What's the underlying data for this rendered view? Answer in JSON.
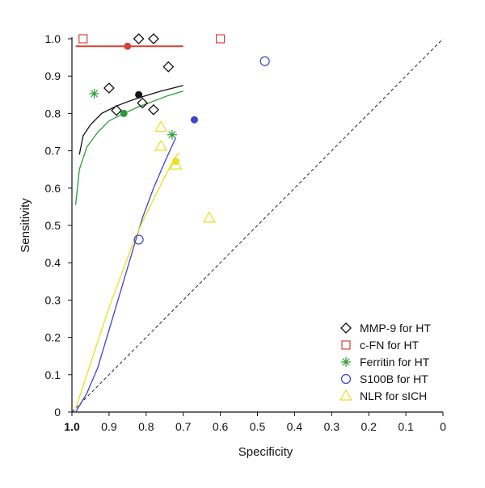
{
  "chart_data": {
    "type": "scatter",
    "xlabel": "Specificity",
    "ylabel": "Sensitivity",
    "xlim": [
      1.0,
      0.0
    ],
    "ylim": [
      0.0,
      1.0
    ],
    "x_reversed": true,
    "xticks": [
      "1.0",
      "0.9",
      "0.8",
      "0.7",
      "0.6",
      "0.5",
      "0.4",
      "0.3",
      "0.2",
      "0.1",
      "0"
    ],
    "yticks": [
      "0",
      "0.1",
      "0.2",
      "0.3",
      "0.4",
      "0.5",
      "0.6",
      "0.7",
      "0.8",
      "0.9",
      "1.0"
    ],
    "grid": false,
    "legend_position": "bottom-right",
    "reference_line": {
      "style": "dashed",
      "color": "#222222",
      "from": [
        1.0,
        0.0
      ],
      "to": [
        0.0,
        1.0
      ]
    },
    "series": [
      {
        "name": "MMP-9 for HT",
        "marker": "diamond",
        "color": "#111111",
        "points": [
          {
            "x": 0.82,
            "y": 1.0
          },
          {
            "x": 0.78,
            "y": 1.0
          },
          {
            "x": 0.74,
            "y": 0.925
          },
          {
            "x": 0.9,
            "y": 0.868
          },
          {
            "x": 0.88,
            "y": 0.808
          },
          {
            "x": 0.81,
            "y": 0.828
          },
          {
            "x": 0.78,
            "y": 0.81
          }
        ],
        "summary_point": {
          "x": 0.82,
          "y": 0.85
        },
        "sroc_curve": [
          [
            0.98,
            0.69
          ],
          [
            0.97,
            0.74
          ],
          [
            0.95,
            0.77
          ],
          [
            0.92,
            0.8
          ],
          [
            0.88,
            0.82
          ],
          [
            0.84,
            0.835
          ],
          [
            0.8,
            0.848
          ],
          [
            0.76,
            0.86
          ],
          [
            0.72,
            0.87
          ],
          [
            0.7,
            0.875
          ]
        ]
      },
      {
        "name": "c-FN for HT",
        "marker": "square",
        "color": "#d2453a",
        "points": [
          {
            "x": 0.97,
            "y": 1.0
          },
          {
            "x": 0.6,
            "y": 1.0
          }
        ],
        "summary_point": {
          "x": 0.85,
          "y": 0.98
        },
        "sroc_curve": [
          [
            0.99,
            0.98
          ],
          [
            0.7,
            0.98
          ]
        ]
      },
      {
        "name": "Ferritin for HT",
        "marker": "asterisk",
        "color": "#2a9a3a",
        "points": [
          {
            "x": 0.94,
            "y": 0.853
          },
          {
            "x": 0.73,
            "y": 0.743
          }
        ],
        "summary_point": {
          "x": 0.86,
          "y": 0.8
        },
        "sroc_curve": [
          [
            0.99,
            0.555
          ],
          [
            0.98,
            0.65
          ],
          [
            0.96,
            0.71
          ],
          [
            0.93,
            0.75
          ],
          [
            0.9,
            0.78
          ],
          [
            0.86,
            0.8
          ],
          [
            0.82,
            0.818
          ],
          [
            0.78,
            0.833
          ],
          [
            0.74,
            0.848
          ],
          [
            0.7,
            0.86
          ]
        ]
      },
      {
        "name": "S100B for HT",
        "marker": "circle",
        "color": "#3a45c8",
        "points": [
          {
            "x": 0.82,
            "y": 0.462
          },
          {
            "x": 0.48,
            "y": 0.94
          }
        ],
        "summary_point": {
          "x": 0.67,
          "y": 0.783
        },
        "sroc_curve": [
          [
            0.99,
            0.0
          ],
          [
            0.96,
            0.05
          ],
          [
            0.93,
            0.12
          ],
          [
            0.9,
            0.22
          ],
          [
            0.87,
            0.32
          ],
          [
            0.84,
            0.42
          ],
          [
            0.81,
            0.52
          ],
          [
            0.78,
            0.6
          ],
          [
            0.75,
            0.67
          ],
          [
            0.72,
            0.735
          ]
        ]
      },
      {
        "name": "NLR for sICH",
        "marker": "triangle",
        "color": "#e6e020",
        "points": [
          {
            "x": 0.76,
            "y": 0.763
          },
          {
            "x": 0.76,
            "y": 0.712
          },
          {
            "x": 0.72,
            "y": 0.662
          },
          {
            "x": 0.63,
            "y": 0.52
          }
        ],
        "summary_point": {
          "x": 0.72,
          "y": 0.672
        },
        "sroc_curve": [
          [
            0.99,
            0.01
          ],
          [
            0.96,
            0.1
          ],
          [
            0.93,
            0.19
          ],
          [
            0.9,
            0.28
          ],
          [
            0.87,
            0.36
          ],
          [
            0.84,
            0.44
          ],
          [
            0.81,
            0.51
          ],
          [
            0.78,
            0.57
          ],
          [
            0.75,
            0.63
          ],
          [
            0.72,
            0.685
          ],
          [
            0.71,
            0.695
          ]
        ]
      }
    ]
  }
}
